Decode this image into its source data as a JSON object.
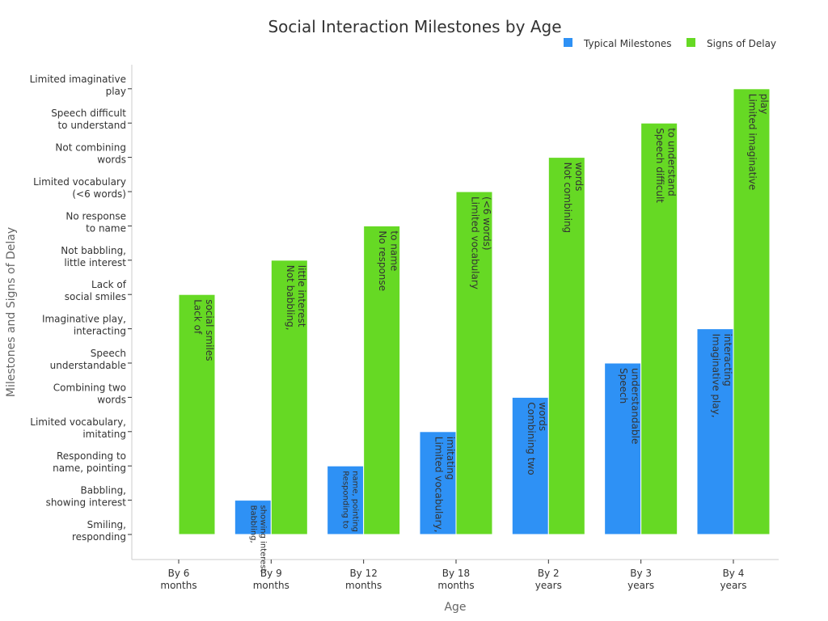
{
  "chart_data": {
    "type": "bar",
    "title": "Social Interaction Milestones by Age",
    "xlabel": "Age",
    "ylabel": "Milestones and Signs of Delay",
    "categories": [
      "By 6\nmonths",
      "By 9\nmonths",
      "By 12\nmonths",
      "By 18\nmonths",
      "By 2\nyears",
      "By 3\nyears",
      "By 4\nyears"
    ],
    "y_categories": [
      "Smiling,\nresponding",
      "Babbling,\nshowing interest",
      "Responding to\nname, pointing",
      "Limited vocabulary,\nimitating",
      "Combining two\nwords",
      "Speech\nunderstandable",
      "Imaginative play,\ninteracting",
      "Lack of\nsocial smiles",
      "Not babbling,\nlittle interest",
      "No response\nto name",
      "Limited vocabulary\n(<6 words)",
      "Not combining\nwords",
      "Speech difficult\nto understand",
      "Limited imaginative\nplay"
    ],
    "legend_position": "top-right",
    "grid": false,
    "series": [
      {
        "name": "Typical Milestones",
        "color": "#2e91f5",
        "values": [
          "Smiling,\nresponding",
          "Babbling,\nshowing interest",
          "Responding to\nname, pointing",
          "Limited vocabulary,\nimitating",
          "Combining two\nwords",
          "Speech\nunderstandable",
          "Imaginative play,\ninteracting"
        ],
        "labels": [
          "Smiling,\nresponding",
          "Babbling,\nshowing interest",
          "Responding to\nname, pointing",
          "Limited vocabulary,\nimitating",
          "Combining two\nwords",
          "Speech\nunderstandable",
          "Imaginative play,\ninteracting"
        ]
      },
      {
        "name": "Signs of Delay",
        "color": "#66d924",
        "values": [
          "Lack of\nsocial smiles",
          "Not babbling,\nlittle interest",
          "No response\nto name",
          "Limited vocabulary\n(<6 words)",
          "Not combining\nwords",
          "Speech difficult\nto understand",
          "Limited imaginative\nplay"
        ],
        "labels": [
          "Lack of\nsocial smiles",
          "Not babbling,\nlittle interest",
          "No response\nto name",
          "Limited vocabulary\n(<6 words)",
          "Not combining\nwords",
          "Speech difficult\nto understand",
          "Limited imaginative\nplay"
        ]
      }
    ]
  }
}
